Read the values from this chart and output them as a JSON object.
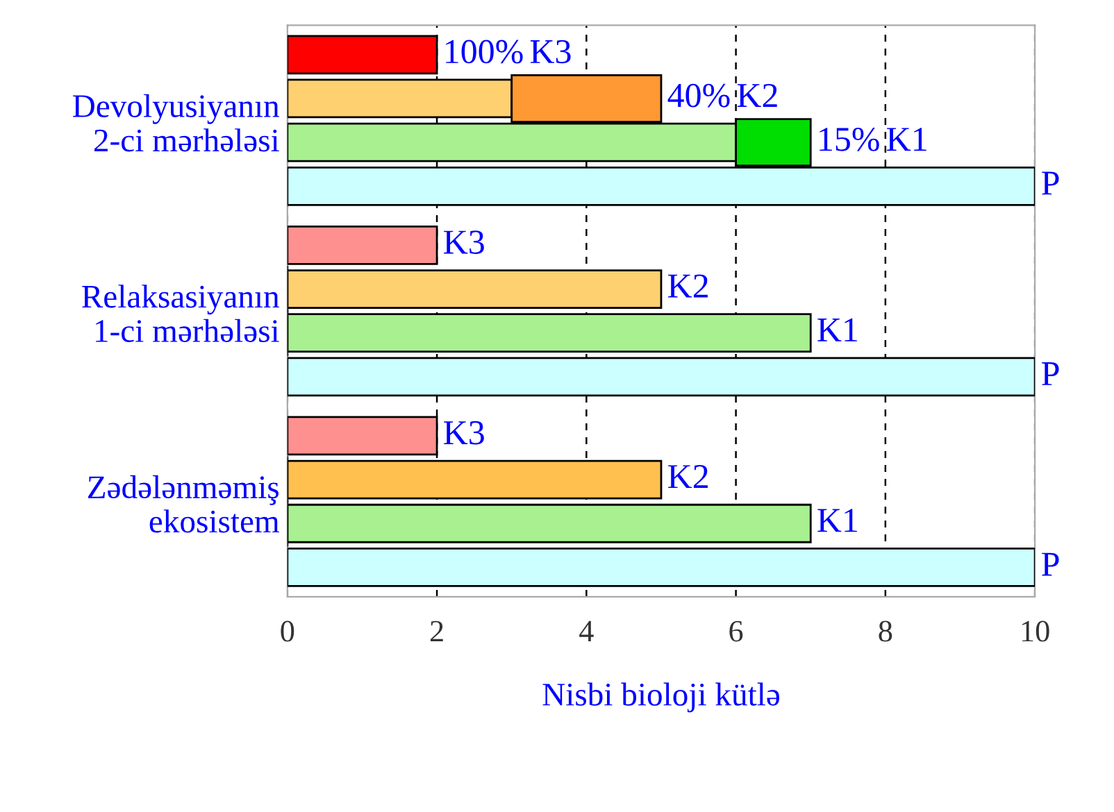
{
  "chart_data": {
    "type": "bar",
    "orientation": "horizontal",
    "xlabel": "Nisbi bioloji kütlə",
    "categories": [
      "Devolyusiyanın\n2-ci mərhələsi",
      "Relaksasiyanın\n1-ci mərhələsi",
      "Zədələnməmiş\nekosistem"
    ],
    "series": [
      {
        "name": "K3",
        "colors": [
          "#ff0000",
          "#ff9090",
          "#ff9090"
        ],
        "values": [
          2,
          2,
          2
        ]
      },
      {
        "name": "K2",
        "colors": [
          "#ffd070",
          "#ffd070",
          "#ffc050"
        ],
        "values": [
          3,
          5,
          5
        ]
      },
      {
        "color": "#ff9933",
        "base": [
          3,
          null,
          null
        ],
        "values": [
          2,
          null,
          null
        ]
      },
      {
        "name": "K1",
        "color": "#a8f090",
        "values": [
          6,
          7,
          7
        ]
      },
      {
        "color": "#00dd00",
        "base": [
          6,
          null,
          null
        ],
        "values": [
          1,
          null,
          null
        ]
      },
      {
        "name": "P",
        "color": "#ccffff",
        "values": [
          10,
          10,
          10
        ]
      }
    ],
    "annotations": [
      {
        "text": "100%",
        "x": 2,
        "y": "Devolyusiyanın\n2-ci mərhələsi"
      },
      {
        "text": "40%",
        "x": 5,
        "y": "Devolyusiyanın\n2-ci mərhələsi"
      },
      {
        "text": "15%",
        "x": 7,
        "y": "Devolyusiyanın\n2-ci mərhələsi"
      }
    ],
    "xlim": [
      0,
      10
    ],
    "xticks": [
      0,
      2,
      4,
      6,
      8,
      10
    ],
    "grid": "x"
  }
}
